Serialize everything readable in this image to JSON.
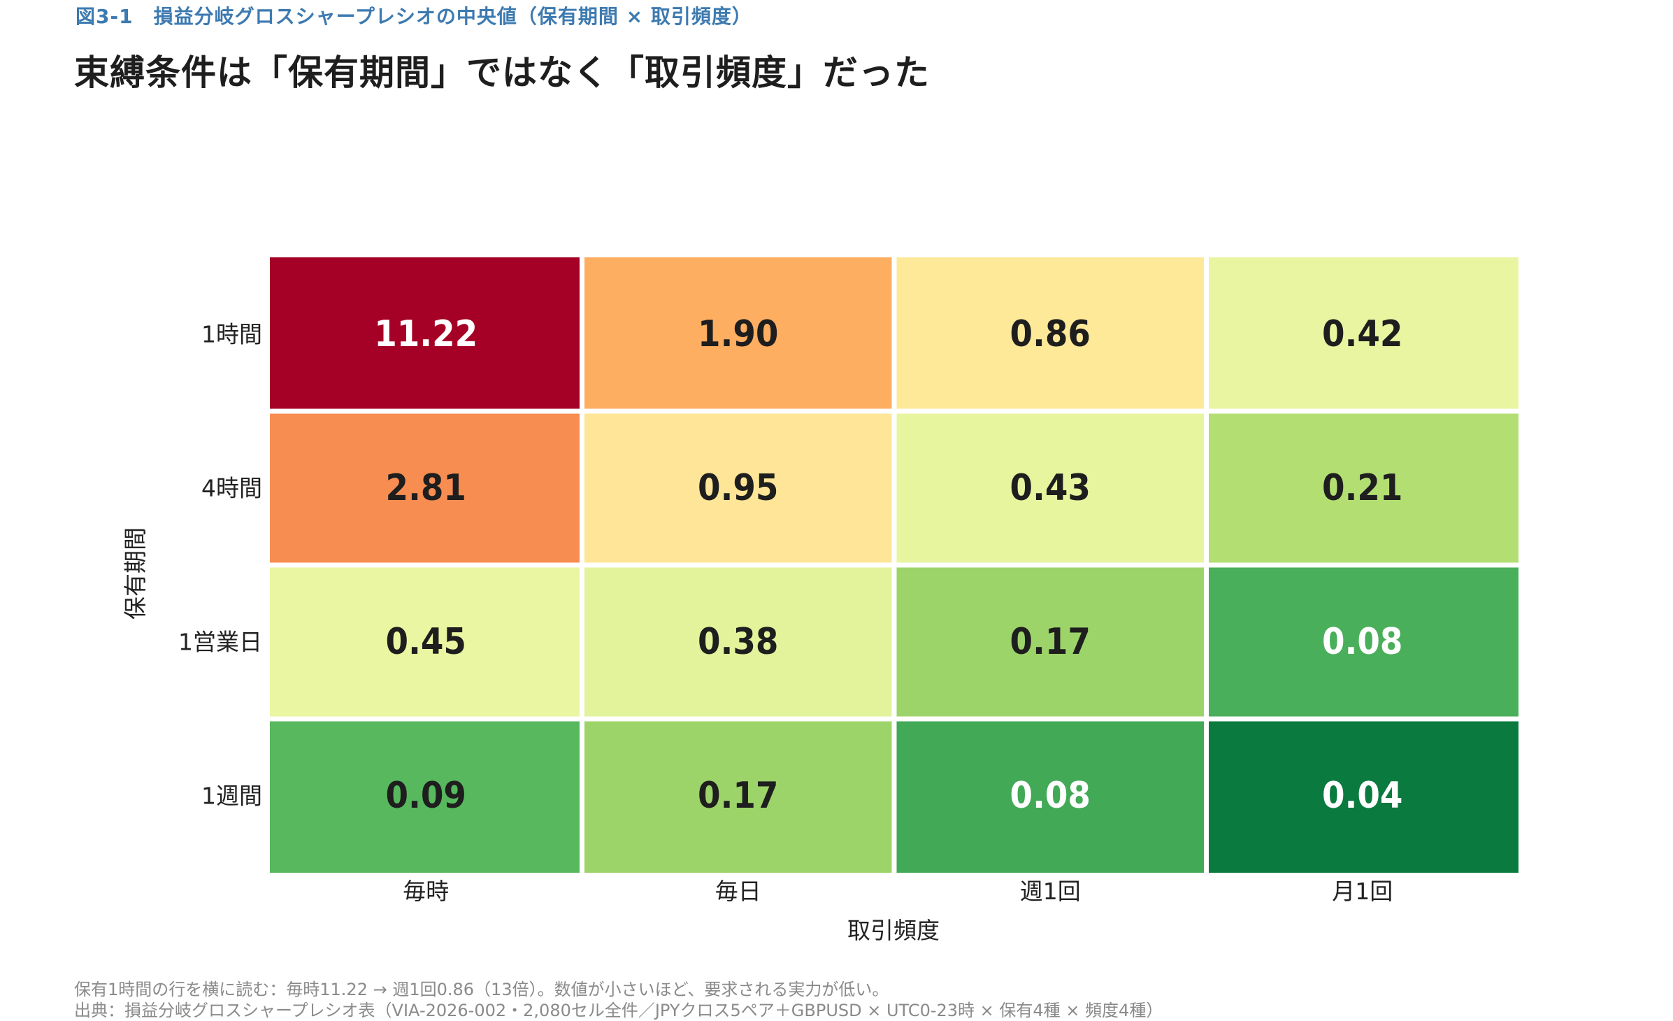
{
  "header": {
    "figure_label": "図3-1　損益分岐グロスシャープレシオの中央値（保有期間 × 取引頻度）",
    "headline": "束縛条件は「保有期間」ではなく「取引頻度」だった"
  },
  "chart_data": {
    "type": "heatmap",
    "title": "束縛条件は「保有期間」ではなく「取引頻度」だった",
    "xlabel": "取引頻度",
    "ylabel": "保有期間",
    "x_categories": [
      "毎時",
      "毎日",
      "週1回",
      "月1回"
    ],
    "y_categories": [
      "1時間",
      "4時間",
      "1営業日",
      "1週間"
    ],
    "values": [
      [
        "11.22",
        "1.90",
        "0.86",
        "0.42"
      ],
      [
        "2.81",
        "0.95",
        "0.43",
        "0.21"
      ],
      [
        "0.45",
        "0.38",
        "0.17",
        "0.08"
      ],
      [
        "0.09",
        "0.17",
        "0.08",
        "0.04"
      ]
    ],
    "colors": [
      [
        "#a50026",
        "#fdae61",
        "#fee999",
        "#e9f5a0"
      ],
      [
        "#f88d52",
        "#fee597",
        "#e8f59f",
        "#b3de72"
      ],
      [
        "#eaf6a1",
        "#e2f39b",
        "#9dd46a",
        "#4aaf5a"
      ],
      [
        "#57b85e",
        "#9dd46a",
        "#42a957",
        "#0a7a3f"
      ]
    ],
    "text_colors": [
      [
        "#ffffff",
        "#1e1e1e",
        "#1e1e1e",
        "#1e1e1e"
      ],
      [
        "#1e1e1e",
        "#1e1e1e",
        "#1e1e1e",
        "#1e1e1e"
      ],
      [
        "#1e1e1e",
        "#1e1e1e",
        "#1e1e1e",
        "#ffffff"
      ],
      [
        "#1e1e1e",
        "#1e1e1e",
        "#ffffff",
        "#ffffff"
      ]
    ],
    "colormap": "RdYlGn_r",
    "grid": false,
    "legend": "none"
  },
  "footer": {
    "note": "保有1時間の行を横に読む：毎時11.22 → 週1回0.86（13倍）。数値が小さいほど、要求される実力が低い。",
    "source": "出典：損益分岐グロスシャープレシオ表（VIA-2026-002・2,080セル全件／JPYクロス5ペア＋GBPUSD × UTC0-23時 × 保有4種 × 頻度4種）"
  }
}
